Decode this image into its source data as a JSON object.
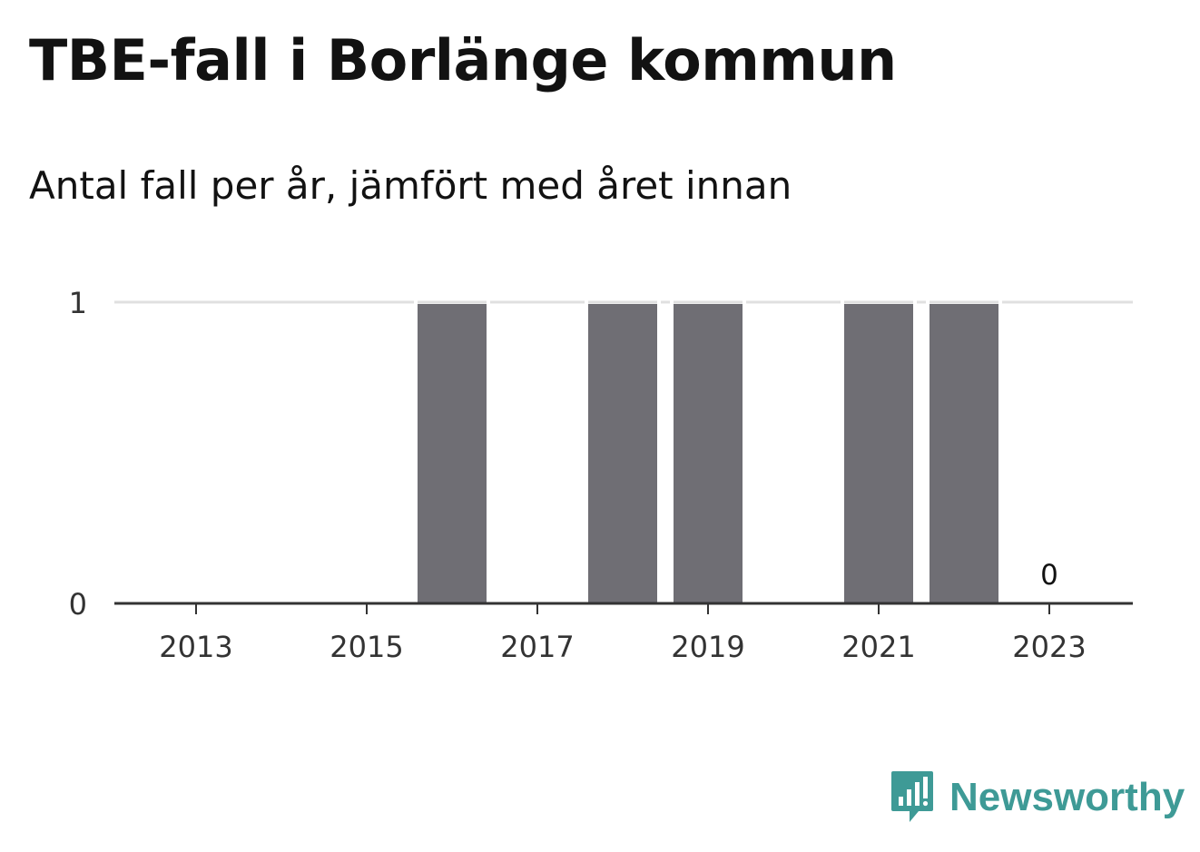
{
  "title": "TBE-fall i Borlänge kommun",
  "subtitle": "Antal fall per år, jämfört med året innan",
  "brand": {
    "name": "Newsworthy",
    "icon": "newsworthy-logo-icon",
    "color": "#3e9a96"
  },
  "colors": {
    "bar": "#6f6e74",
    "gridline": "#e0e0e0",
    "axis": "#333333"
  },
  "chart_data": {
    "type": "bar",
    "categories": [
      "2013",
      "2014",
      "2015",
      "2016",
      "2017",
      "2018",
      "2019",
      "2020",
      "2021",
      "2022",
      "2023"
    ],
    "values": [
      0,
      0,
      0,
      1,
      0,
      1,
      1,
      0,
      1,
      1,
      0
    ],
    "x_tick_labels": [
      "2013",
      "2015",
      "2017",
      "2019",
      "2021",
      "2023"
    ],
    "y_ticks": [
      0,
      1
    ],
    "ylim": [
      0,
      1
    ],
    "grid": true,
    "annotations": [
      {
        "category": "2023",
        "text": "0"
      }
    ],
    "xlabel": "",
    "ylabel": ""
  }
}
